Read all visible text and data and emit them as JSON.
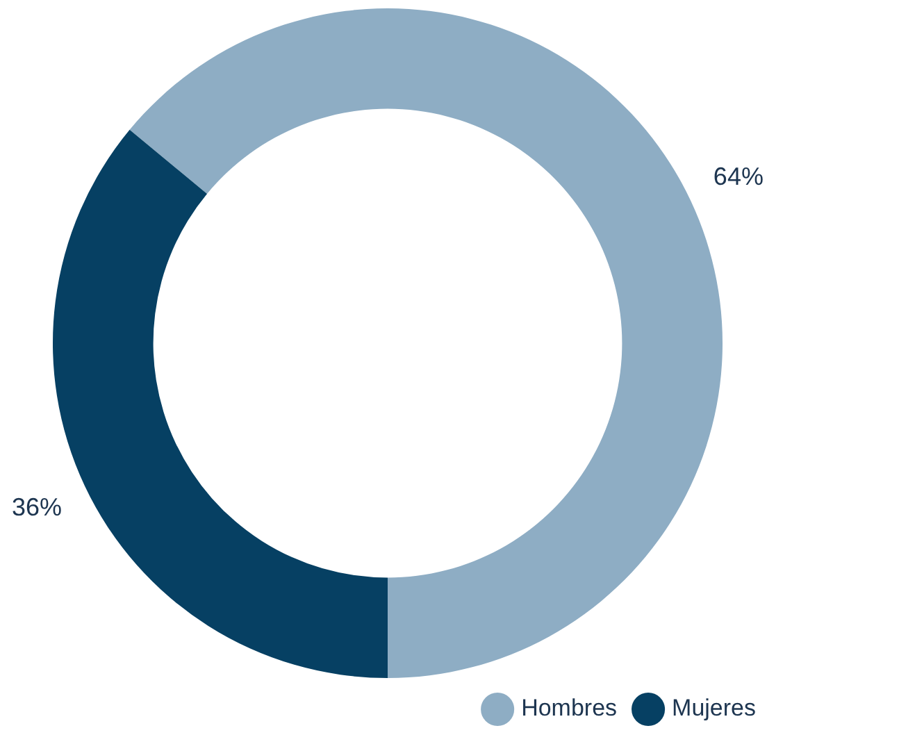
{
  "chart_data": {
    "type": "donut",
    "categories": [
      "Hombres",
      "Mujeres"
    ],
    "values": [
      64,
      36
    ],
    "colors": [
      "#8eadc4",
      "#064063"
    ],
    "value_labels": [
      "64%",
      "36%"
    ],
    "legend": "bottom right"
  }
}
